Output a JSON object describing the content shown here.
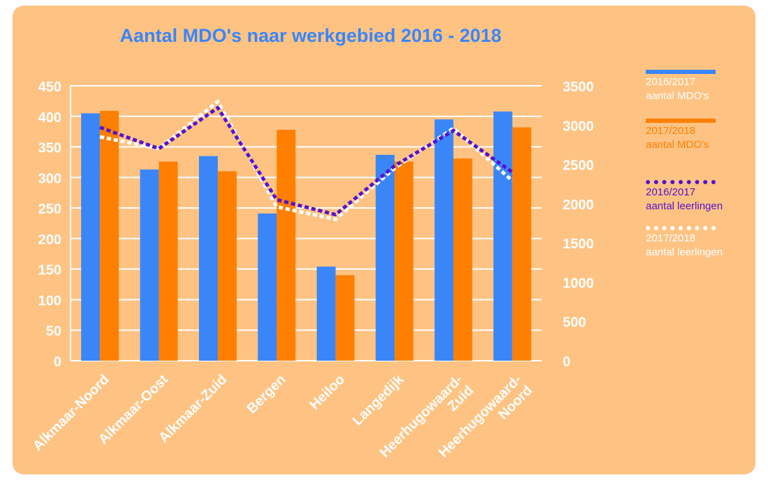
{
  "chart_data": {
    "type": "bar",
    "title": "Aantal MDO's naar werkgebied 2016 - 2018",
    "categories": [
      "Alkmaar-Noord",
      "Alkmaar-Oost",
      "Alkmaar-Zuid",
      "Bergen",
      "Heiloo",
      "Langedijk",
      "Heerhugowaard-Zuid",
      "Heerhugowaard-Noord"
    ],
    "category_label_lines": [
      [
        "Alkmaar-Noord"
      ],
      [
        "Alkmaar-Oost"
      ],
      [
        "Alkmaar-Zuid"
      ],
      [
        "Bergen"
      ],
      [
        "Heiloo"
      ],
      [
        "Langedijk"
      ],
      [
        "Heerhugowaard-",
        "Zuid"
      ],
      [
        "Heerhugowaard-",
        "Noord"
      ]
    ],
    "y_left": {
      "ylim": [
        0,
        450
      ],
      "ticks": [
        "0",
        "50",
        "100",
        "150",
        "200",
        "250",
        "300",
        "350",
        "400",
        "450"
      ]
    },
    "y_right": {
      "ylim": [
        0,
        3500
      ],
      "ticks": [
        "0",
        "500",
        "1000",
        "1500",
        "2000",
        "2500",
        "3000",
        "3500"
      ]
    },
    "grid": true,
    "legend_position": "right",
    "series": [
      {
        "name_line1": "2016/2017",
        "name_line2": "aantal MDO's",
        "kind": "bar",
        "axis": "left",
        "color": "#3a86f8",
        "values": [
          405,
          313,
          335,
          241,
          154,
          337,
          395,
          408
        ]
      },
      {
        "name_line1": "2017/2018",
        "name_line2": "aantal MDO's",
        "kind": "bar",
        "axis": "left",
        "color": "#ff7f00",
        "values": [
          409,
          326,
          310,
          378,
          140,
          326,
          331,
          382
        ]
      },
      {
        "name_line1": "2016/2017",
        "name_line2": "aantal leerlingen",
        "kind": "line",
        "axis": "right",
        "color": "#5412cf",
        "values": [
          2970,
          2700,
          3220,
          2050,
          1860,
          2480,
          2930,
          2400
        ]
      },
      {
        "name_line1": "2017/2018",
        "name_line2": "aantal leerlingen",
        "kind": "line",
        "axis": "right",
        "color": "#ffffff",
        "values": [
          2850,
          2700,
          3300,
          1960,
          1800,
          2450,
          2960,
          2290
        ]
      }
    ]
  },
  "colors": {
    "background": "#fec383",
    "title": "#3a86f8",
    "axis_text": "#ffffff",
    "grid": "#ffffff"
  }
}
